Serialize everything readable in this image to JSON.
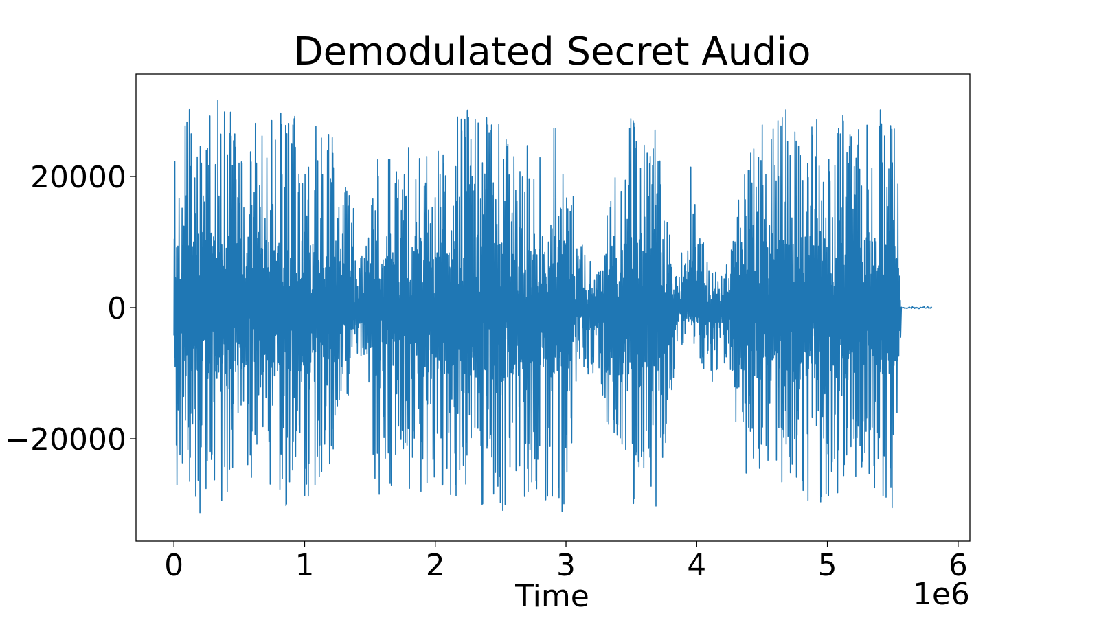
{
  "chart_data": {
    "type": "line",
    "title": "Demodulated Secret Audio",
    "xlabel": "Time",
    "ylabel": "",
    "x_offset_label": "1e6",
    "xlim": [
      -0.29,
      6.09
    ],
    "ylim": [
      -35600,
      35600
    ],
    "xticks": [
      0,
      1,
      2,
      3,
      4,
      5,
      6
    ],
    "xtick_labels": [
      "0",
      "1",
      "2",
      "3",
      "4",
      "5",
      "6"
    ],
    "yticks": [
      -20000,
      0,
      20000
    ],
    "ytick_labels": [
      "−20000",
      "0",
      "20000"
    ],
    "grid": false,
    "line_color": "#1f77b4",
    "series": [
      {
        "x_start": 0.0,
        "x_end": 5.8,
        "signal_end": 5.56,
        "envelope": [
          {
            "x": 0.0,
            "max": 30000,
            "min": -30000
          },
          {
            "x": 0.2,
            "max": 31000,
            "min": -32000
          },
          {
            "x": 0.4,
            "max": 32000,
            "min": -29000
          },
          {
            "x": 0.6,
            "max": 30000,
            "min": -27000
          },
          {
            "x": 0.8,
            "max": 31000,
            "min": -31000
          },
          {
            "x": 1.0,
            "max": 30000,
            "min": -30000
          },
          {
            "x": 1.2,
            "max": 27000,
            "min": -26000
          },
          {
            "x": 1.35,
            "max": 18000,
            "min": -15000
          },
          {
            "x": 1.45,
            "max": 7000,
            "min": -6000
          },
          {
            "x": 1.55,
            "max": 27000,
            "min": -31000
          },
          {
            "x": 1.8,
            "max": 25000,
            "min": -29000
          },
          {
            "x": 2.0,
            "max": 23000,
            "min": -30000
          },
          {
            "x": 2.2,
            "max": 31000,
            "min": -30000
          },
          {
            "x": 2.4,
            "max": 31000,
            "min": -31000
          },
          {
            "x": 2.55,
            "max": 26000,
            "min": -32000
          },
          {
            "x": 2.75,
            "max": 25000,
            "min": -29000
          },
          {
            "x": 3.0,
            "max": 30000,
            "min": -32000
          },
          {
            "x": 3.1,
            "max": 10000,
            "min": -9000
          },
          {
            "x": 3.25,
            "max": 8000,
            "min": -12000
          },
          {
            "x": 3.45,
            "max": 29000,
            "min": -32000
          },
          {
            "x": 3.6,
            "max": 30000,
            "min": -28000
          },
          {
            "x": 3.7,
            "max": 32000,
            "min": -31000
          },
          {
            "x": 3.85,
            "max": 4000,
            "min": -7000
          },
          {
            "x": 3.95,
            "max": 22000,
            "min": -5000
          },
          {
            "x": 4.1,
            "max": 7000,
            "min": -12000
          },
          {
            "x": 4.25,
            "max": 7000,
            "min": -9000
          },
          {
            "x": 4.35,
            "max": 21000,
            "min": -26000
          },
          {
            "x": 4.55,
            "max": 31000,
            "min": -26000
          },
          {
            "x": 4.75,
            "max": 30000,
            "min": -31000
          },
          {
            "x": 4.95,
            "max": 29000,
            "min": -32000
          },
          {
            "x": 5.15,
            "max": 30000,
            "min": -30000
          },
          {
            "x": 5.35,
            "max": 31000,
            "min": -28000
          },
          {
            "x": 5.5,
            "max": 32000,
            "min": -31000
          },
          {
            "x": 5.56,
            "max": 12000,
            "min": -8000
          }
        ]
      }
    ]
  }
}
